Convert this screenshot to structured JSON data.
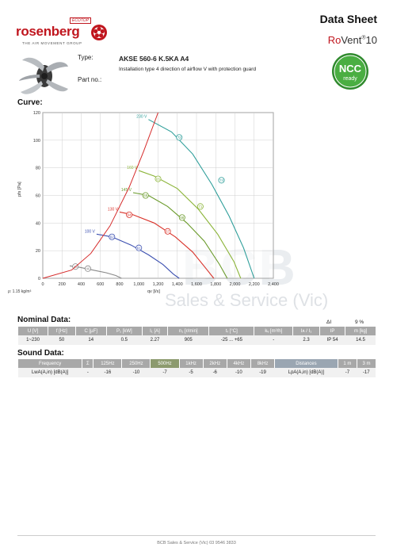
{
  "header": {
    "brand": "rosenberg",
    "ecotop": "ECOTOP",
    "tagline": "THE AIR MOVEMENT GROUP",
    "doc_title": "Data Sheet",
    "product_line_red": "Ro",
    "product_line_bold": "Vent",
    "product_line_sup": "®",
    "product_line_num": "10"
  },
  "product": {
    "type_label": "Type:",
    "type_value": "AKSE 560-6 K.5KA A4",
    "description": "Installation type 4 direction of airflow V with protection guard",
    "partno_label": "Part no.:",
    "partno_value": ""
  },
  "ncc": {
    "line1": "NCC",
    "line2": "ready",
    "color": "#3d9c3a"
  },
  "curve": {
    "heading": "Curve:",
    "density": "ρ: 1.15 kg/m³"
  },
  "watermark": {
    "big": "BCB",
    "sub": "Sales & Service (Vic)"
  },
  "chart_data": {
    "type": "line",
    "xlabel": "qv [l/s]",
    "ylabel": "pfs [Pa]",
    "xlim": [
      0,
      2400
    ],
    "ylim": [
      0,
      120
    ],
    "x_ticks": [
      "0",
      "200",
      "400",
      "600",
      "800",
      "1,000",
      "1,200",
      "1,400",
      "1,600",
      "1,800",
      "2,000",
      "2,200",
      "2,400"
    ],
    "y_ticks": [
      "0",
      "20",
      "40",
      "60",
      "80",
      "100",
      "120"
    ],
    "grid": true,
    "series": [
      {
        "name": "230 V",
        "color": "#2e9e9a",
        "x": [
          1100,
          1340,
          1560,
          1760,
          1940,
          2090,
          2200
        ],
        "y": [
          115,
          106,
          90,
          68,
          45,
          22,
          0
        ],
        "markers": [
          {
            "x": 1420,
            "y": 102,
            "label": "72"
          },
          {
            "x": 1860,
            "y": 71,
            "label": "74"
          }
        ]
      },
      {
        "name": "160 V",
        "color": "#8bb438",
        "x": [
          1000,
          1160,
          1400,
          1620,
          1820,
          1990,
          2060
        ],
        "y": [
          78,
          74,
          65,
          50,
          32,
          12,
          0
        ],
        "markers": [
          {
            "x": 1200,
            "y": 72,
            "label": "65"
          },
          {
            "x": 1640,
            "y": 52,
            "label": "71"
          }
        ]
      },
      {
        "name": "145 V",
        "color": "#6a9a2a",
        "x": [
          940,
          1100,
          1300,
          1500,
          1680,
          1840,
          1920
        ],
        "y": [
          62,
          60,
          52,
          40,
          27,
          10,
          0
        ],
        "markers": [
          {
            "x": 1070,
            "y": 60,
            "label": "65"
          },
          {
            "x": 1450,
            "y": 44,
            "label": "68"
          }
        ]
      },
      {
        "name": "130 V",
        "color": "#d9332a",
        "x": [
          800,
          940,
          1160,
          1380,
          1560,
          1700,
          1780
        ],
        "y": [
          48,
          46,
          40,
          30,
          19,
          7,
          0
        ],
        "markers": [
          {
            "x": 900,
            "y": 46,
            "label": "64"
          },
          {
            "x": 1300,
            "y": 34,
            "label": "67"
          }
        ]
      },
      {
        "name": "100 V",
        "color": "#3b4fb0",
        "x": [
          560,
          720,
          920,
          1100,
          1250,
          1360,
          1420
        ],
        "y": [
          32,
          30,
          24,
          17,
          10,
          3,
          0
        ],
        "markers": [
          {
            "x": 720,
            "y": 30,
            "label": "62"
          },
          {
            "x": 1000,
            "y": 22,
            "label": "61"
          }
        ]
      },
      {
        "name": "",
        "color": "#888888",
        "x": [
          280,
          380,
          520,
          660,
          760,
          820
        ],
        "y": [
          9,
          8,
          6,
          4,
          2,
          0
        ],
        "markers": [
          {
            "x": 340,
            "y": 8.5,
            "label": "43"
          },
          {
            "x": 470,
            "y": 7,
            "label": "46"
          }
        ]
      }
    ],
    "limit_curve": {
      "color": "#d62b2b",
      "x": [
        0,
        300,
        500,
        700,
        900,
        1050,
        1200
      ],
      "y": [
        0,
        6,
        18,
        38,
        66,
        92,
        120
      ]
    }
  },
  "nominal": {
    "heading": "Nominal Data:",
    "delta_label": "ΔI",
    "delta_value": "9 %",
    "headers": [
      "U [V]",
      "f [Hz]",
      "C [µF]",
      "P₁ [kW]",
      "I₁ [A]",
      "n₁ [r/min]",
      "tᵣ [°C]",
      "kᵥ [m³/h]",
      "Iᴀ / I₁",
      "IP",
      "m [kg]"
    ],
    "values": [
      "1~230",
      "50",
      "14",
      "0.5",
      "2.27",
      "905",
      "-25 ... +65",
      "-",
      "2.3",
      "IP 54",
      "14.5"
    ]
  },
  "sound": {
    "heading": "Sound Data:",
    "headers": [
      "Frequency",
      "Σ",
      "125Hz",
      "250Hz",
      "500Hz",
      "1kHz",
      "2kHz",
      "4kHz",
      "8kHz",
      "Distances",
      "1 m",
      "3 m"
    ],
    "row": [
      "LwA(A,in) [dB(A)]",
      "-",
      "-16",
      "-10",
      "-7",
      "-5",
      "-6",
      "-10",
      "-19",
      "LpA(A,in) [dB(A)]",
      "-7",
      "-17"
    ]
  },
  "footer": {
    "text": "BCB Sales & Service (Vic) 03 9546 3833"
  }
}
